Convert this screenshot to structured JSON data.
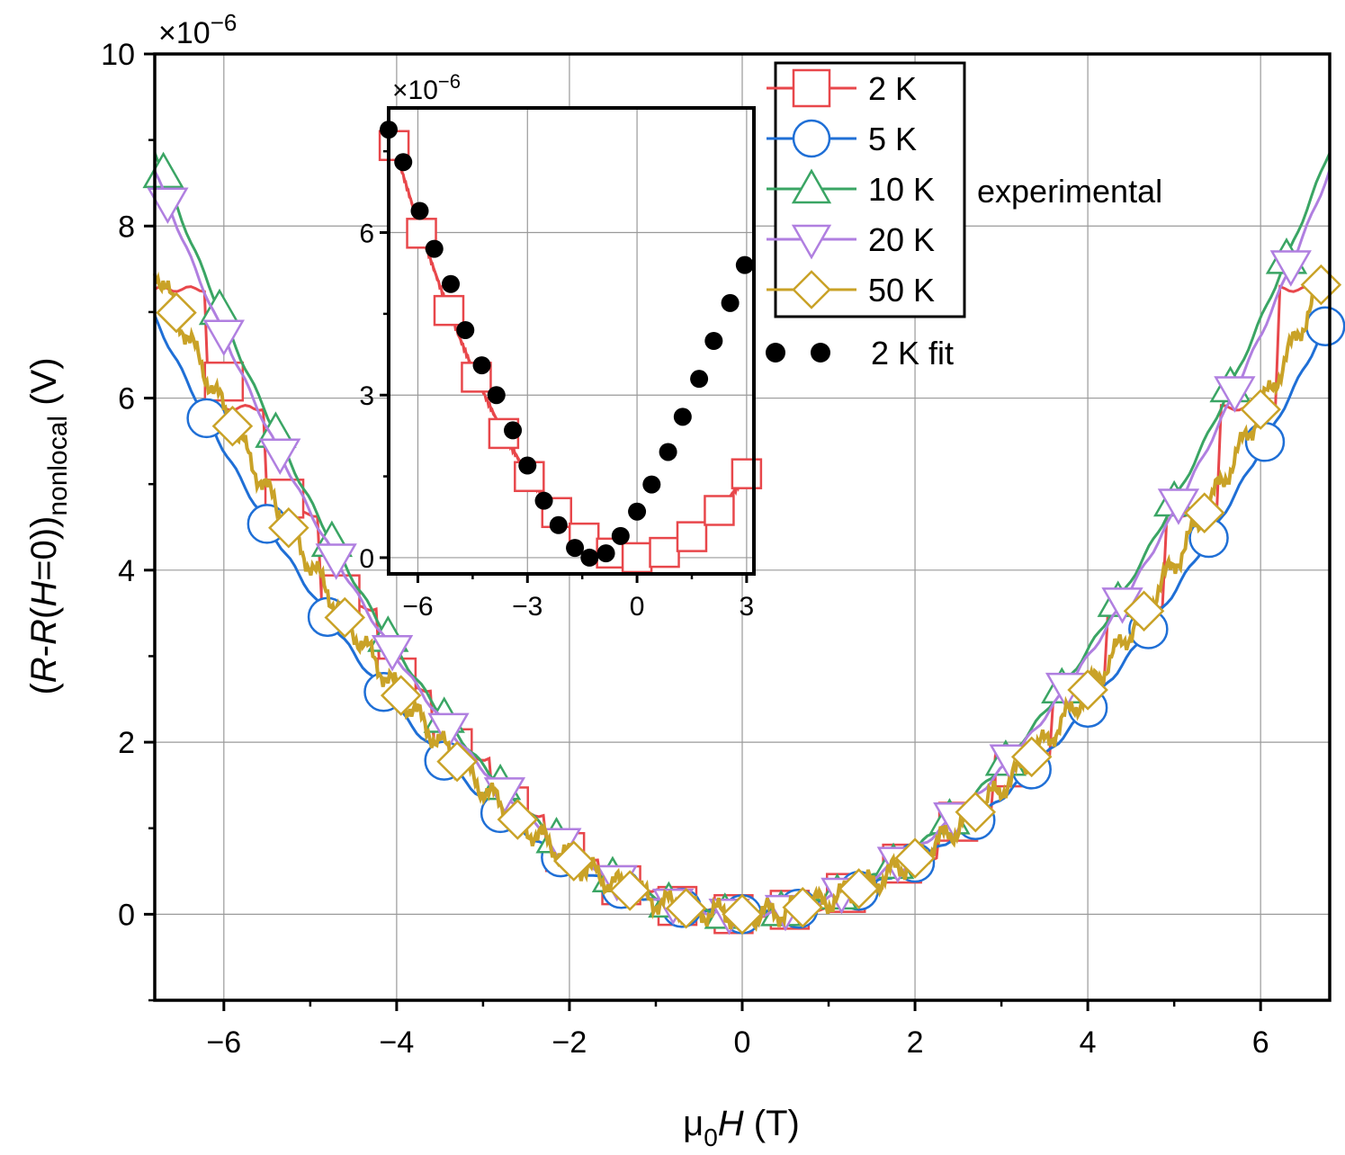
{
  "chart_data": [
    {
      "type": "line",
      "role": "main",
      "xlabel_main": "μ",
      "xlabel_sub": "0",
      "xlabel_var": "H",
      "xlabel_unit": " (T)",
      "ylabel_open": "(",
      "ylabel_r1": "R",
      "ylabel_dash": "-",
      "ylabel_r2": "R",
      "ylabel_paren": "(",
      "ylabel_h": "H",
      "ylabel_eq": "=0))",
      "ylabel_sub": "nonlocal",
      "ylabel_unit": " (V)",
      "multiplier_base": "×10",
      "multiplier_exp": "−6",
      "xlim": [
        -6.8,
        6.8
      ],
      "ylim": [
        -1,
        10
      ],
      "xticks": [
        -6,
        -4,
        -2,
        0,
        2,
        4,
        6
      ],
      "xtick_labels": [
        "−6",
        "−4",
        "−2",
        "0",
        "2",
        "4",
        "6"
      ],
      "yticks": [
        0,
        2,
        4,
        6,
        8,
        10
      ],
      "ytick_labels": [
        "0",
        "2",
        "4",
        "6",
        "8",
        "10"
      ],
      "grid": true,
      "series": [
        {
          "name": "2 K",
          "color": "#e8474b",
          "marker": "square",
          "curvature": 0.172,
          "step": true,
          "marker_x": [
            -6.0,
            -5.3,
            -4.65,
            -4.0,
            -3.35,
            -2.7,
            -2.05,
            -1.4,
            -0.75,
            -0.1,
            0.55,
            1.2,
            1.85,
            2.5,
            3.15
          ]
        },
        {
          "name": "5 K",
          "color": "#1f6fd6",
          "marker": "circle",
          "curvature": 0.15,
          "marker_x": [
            -6.2,
            -5.5,
            -4.8,
            -4.15,
            -3.45,
            -2.8,
            -2.1,
            -1.4,
            -0.7,
            0.0,
            0.65,
            1.35,
            2.0,
            2.7,
            3.35,
            4.0,
            4.7,
            5.4,
            6.05,
            6.75
          ]
        },
        {
          "name": "10 K",
          "color": "#3aa564",
          "marker": "triangle-up",
          "curvature": 0.192,
          "marker_x": [
            -6.7,
            -6.05,
            -5.4,
            -4.75,
            -4.1,
            -3.45,
            -2.8,
            -2.15,
            -1.5,
            -0.85,
            -0.2,
            0.45,
            1.1,
            1.75,
            2.4,
            3.05,
            3.7,
            4.35,
            5.0,
            5.65,
            6.3
          ]
        },
        {
          "name": "20 K",
          "color": "#b07fe0",
          "marker": "triangle-down",
          "curvature": 0.187,
          "marker_x": [
            -6.65,
            -6.0,
            -5.35,
            -4.7,
            -4.05,
            -3.4,
            -2.75,
            -2.1,
            -1.45,
            -0.8,
            -0.15,
            0.5,
            1.15,
            1.8,
            2.45,
            3.1,
            3.75,
            4.4,
            5.05,
            5.7,
            6.35
          ]
        },
        {
          "name": "50 K",
          "color": "#c9a227",
          "marker": "diamond",
          "curvature": 0.163,
          "noisy": true,
          "marker_x": [
            -6.55,
            -5.9,
            -5.25,
            -4.6,
            -3.95,
            -3.3,
            -2.6,
            -1.95,
            -1.3,
            -0.65,
            0.0,
            0.7,
            1.35,
            2.0,
            2.7,
            3.35,
            4.0,
            4.65,
            5.35,
            6.0,
            6.7
          ]
        }
      ],
      "legend": {
        "location": "top-right",
        "group_label": "experimental",
        "fit_label": "2 K fit"
      }
    },
    {
      "type": "scatter",
      "role": "inset",
      "multiplier_base": "×10",
      "multiplier_exp": "−6",
      "xlim": [
        -6.8,
        3.2
      ],
      "ylim": [
        -0.3,
        8.3
      ],
      "xticks": [
        -6,
        -3,
        0,
        3
      ],
      "xtick_labels": [
        "−6",
        "−3",
        "0",
        "3"
      ],
      "yticks": [
        0,
        3,
        6
      ],
      "ytick_labels": [
        "0",
        "3",
        "6"
      ],
      "grid": true,
      "line": {
        "name": "2 K",
        "color": "#e8474b",
        "curvature": 0.172,
        "marker_x": [
          -6.65,
          -5.9,
          -5.15,
          -4.4,
          -3.65,
          -2.95,
          -2.2,
          -1.45,
          -0.7,
          0.0,
          0.75,
          1.5,
          2.25,
          3.0
        ]
      },
      "fit": {
        "name": "2 K fit",
        "color": "#000000",
        "x": [
          -6.8,
          -6.4,
          -5.95,
          -5.55,
          -5.1,
          -4.7,
          -4.25,
          -3.85,
          -3.4,
          -3.0,
          -2.55,
          -2.15,
          -1.7,
          -1.3,
          -0.85,
          -0.45,
          0.0,
          0.4,
          0.85,
          1.25,
          1.7,
          2.1,
          2.55,
          2.95
        ],
        "y": [
          7.9,
          7.3,
          6.4,
          5.7,
          5.05,
          4.2,
          3.55,
          3.0,
          2.35,
          1.7,
          1.05,
          0.6,
          0.18,
          0.0,
          0.08,
          0.4,
          0.85,
          1.35,
          1.95,
          2.6,
          3.3,
          4.0,
          4.7,
          5.4
        ]
      }
    }
  ]
}
